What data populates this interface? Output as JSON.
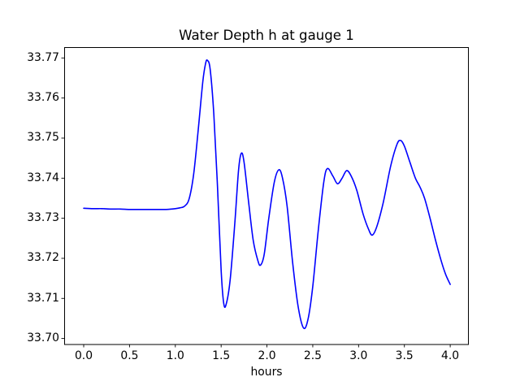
{
  "figure": {
    "background_color": "#ffffff",
    "axis_color": "#000000",
    "text_color": "#000000"
  },
  "chart_data": {
    "type": "line",
    "title": "Water Depth h at gauge 1",
    "xlabel": "hours",
    "ylabel": "",
    "grid": false,
    "legend_position": "none",
    "xlim": [
      -0.213,
      4.203
    ],
    "ylim": [
      33.6985,
      33.7727
    ],
    "xticks": [
      0.0,
      0.5,
      1.0,
      1.5,
      2.0,
      2.5,
      3.0,
      3.5,
      4.0
    ],
    "xtick_labels": [
      "0.0",
      "0.5",
      "1.0",
      "1.5",
      "2.0",
      "2.5",
      "3.0",
      "3.5",
      "4.0"
    ],
    "yticks": [
      33.7,
      33.71,
      33.72,
      33.73,
      33.74,
      33.75,
      33.76,
      33.77
    ],
    "ytick_labels": [
      "33.70",
      "33.71",
      "33.72",
      "33.73",
      "33.74",
      "33.75",
      "33.76",
      "33.77"
    ],
    "series": [
      {
        "name": "water depth h",
        "color": "#0000ff",
        "line_width": 1.6,
        "x": [
          0.0,
          0.1,
          0.2,
          0.3,
          0.4,
          0.5,
          0.6,
          0.7,
          0.8,
          0.9,
          1.0,
          1.05,
          1.1,
          1.15,
          1.2,
          1.25,
          1.3,
          1.33,
          1.35,
          1.38,
          1.42,
          1.46,
          1.5,
          1.53,
          1.56,
          1.6,
          1.65,
          1.69,
          1.72,
          1.75,
          1.8,
          1.85,
          1.9,
          1.93,
          1.97,
          2.02,
          2.08,
          2.13,
          2.17,
          2.22,
          2.28,
          2.34,
          2.4,
          2.45,
          2.5,
          2.56,
          2.62,
          2.66,
          2.72,
          2.77,
          2.82,
          2.87,
          2.92,
          2.98,
          3.05,
          3.11,
          3.15,
          3.2,
          3.27,
          3.35,
          3.42,
          3.46,
          3.5,
          3.56,
          3.62,
          3.67,
          3.72,
          3.78,
          3.84,
          3.9,
          3.95,
          4.0
        ],
        "y": [
          33.7325,
          33.7324,
          33.7324,
          33.7323,
          33.7323,
          33.7322,
          33.7322,
          33.7322,
          33.7322,
          33.7322,
          33.7324,
          33.7326,
          33.733,
          33.7348,
          33.741,
          33.7521,
          33.7641,
          33.7686,
          33.7694,
          33.7672,
          33.756,
          33.738,
          33.717,
          33.7085,
          33.709,
          33.715,
          33.729,
          33.742,
          33.7462,
          33.744,
          33.734,
          33.7245,
          33.7195,
          33.7183,
          33.721,
          33.73,
          33.739,
          33.7421,
          33.74,
          33.733,
          33.719,
          33.708,
          33.7026,
          33.705,
          33.713,
          33.727,
          33.739,
          33.7424,
          33.7405,
          33.7386,
          33.74,
          33.7419,
          33.7405,
          33.737,
          33.731,
          33.7272,
          33.7258,
          33.728,
          33.734,
          33.743,
          33.7485,
          33.7494,
          33.748,
          33.744,
          33.74,
          33.7378,
          33.735,
          33.73,
          33.7245,
          33.7195,
          33.716,
          33.7135
        ]
      }
    ]
  }
}
